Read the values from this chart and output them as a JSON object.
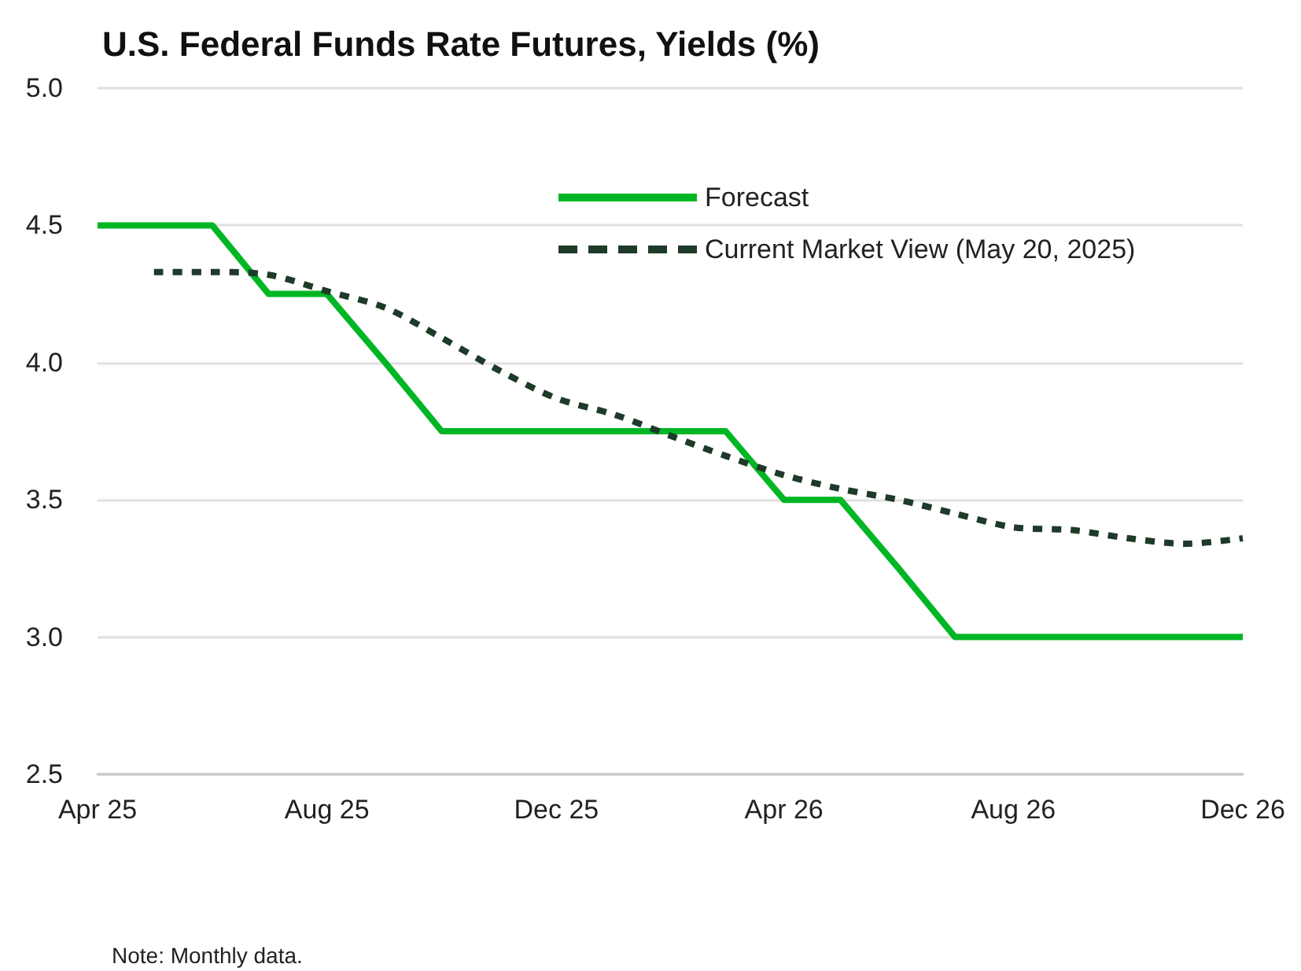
{
  "chart_data": {
    "type": "line",
    "title": "U.S. Federal Funds Rate Futures, Yields (%)",
    "annotations": [
      "Note: Monthly data."
    ],
    "xlim": [
      "2025-04",
      "2026-12"
    ],
    "xticks": [
      {
        "value": "2025-04",
        "label": "Apr 25"
      },
      {
        "value": "2025-08",
        "label": "Aug 25"
      },
      {
        "value": "2025-12",
        "label": "Dec 25"
      },
      {
        "value": "2026-04",
        "label": "Apr 26"
      },
      {
        "value": "2026-08",
        "label": "Aug 26"
      },
      {
        "value": "2026-12",
        "label": "Dec 26"
      }
    ],
    "ylim": [
      2.5,
      5
    ],
    "yticks": [
      {
        "value": 2.5,
        "label": "2.5"
      },
      {
        "value": 3,
        "label": "3.0"
      },
      {
        "value": 3.5,
        "label": "3.5"
      },
      {
        "value": 4,
        "label": "4.0"
      },
      {
        "value": 4.5,
        "label": "4.5"
      },
      {
        "value": 5,
        "label": "5.0"
      }
    ],
    "grid": "y",
    "legend": "top right",
    "marker": "none",
    "series": [
      {
        "name": "Forecast",
        "color": "#00b624",
        "line_style": "solid",
        "x": [
          "2025-04",
          "2025-05",
          "2025-06",
          "2025-07",
          "2025-08",
          "2025-09",
          "2025-10",
          "2025-11",
          "2025-12",
          "2026-01",
          "2026-02",
          "2026-03",
          "2026-04",
          "2026-05",
          "2026-06",
          "2026-07",
          "2026-08",
          "2026-09",
          "2026-10",
          "2026-11",
          "2026-12"
        ],
        "values": [
          4.5,
          4.5,
          4.5,
          4.25,
          4.25,
          4.0,
          3.75,
          3.75,
          3.75,
          3.75,
          3.75,
          3.75,
          3.5,
          3.5,
          3.25,
          3.0,
          3.0,
          3.0,
          3.0,
          3.0,
          3.0
        ]
      },
      {
        "name": "Current Market View (May 20, 2025)",
        "color": "#1e3a28",
        "line_style": "dashed",
        "x": [
          "2025-05",
          "2025-06",
          "2025-07",
          "2025-08",
          "2025-09",
          "2025-10",
          "2025-11",
          "2025-12",
          "2026-01",
          "2026-02",
          "2026-03",
          "2026-04",
          "2026-05",
          "2026-06",
          "2026-07",
          "2026-08",
          "2026-09",
          "2026-10",
          "2026-11",
          "2026-12"
        ],
        "values": [
          4.33,
          4.33,
          4.32,
          4.26,
          4.2,
          4.09,
          3.97,
          3.87,
          3.81,
          3.73,
          3.66,
          3.59,
          3.54,
          3.5,
          3.45,
          3.4,
          3.39,
          3.36,
          3.34,
          3.36
        ]
      }
    ]
  }
}
